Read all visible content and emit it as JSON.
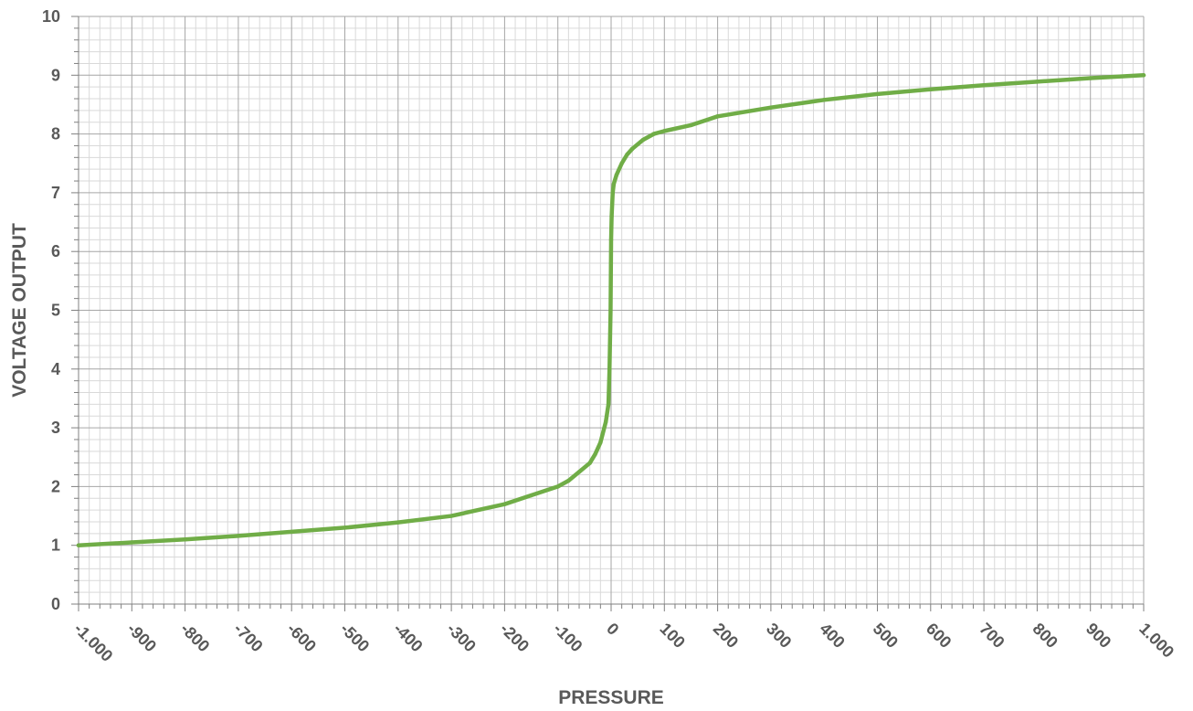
{
  "chart_data": {
    "type": "line",
    "title": "",
    "xlabel": "PRESSURE",
    "ylabel": "VOLTAGE OUTPUT",
    "xlim": [
      -1000,
      1000
    ],
    "ylim": [
      0,
      10
    ],
    "x_tick_values": [
      -1000,
      -900,
      -800,
      -700,
      -600,
      -500,
      -400,
      -300,
      -200,
      -100,
      0,
      100,
      200,
      300,
      400,
      500,
      600,
      700,
      800,
      900,
      1000
    ],
    "x_tick_labels": [
      "-1.000",
      "-900",
      "-800",
      "-700",
      "-600",
      "-500",
      "-400",
      "-300",
      "-200",
      "-100",
      "0",
      "100",
      "200",
      "300",
      "400",
      "500",
      "600",
      "700",
      "800",
      "900",
      "1.000"
    ],
    "y_tick_values": [
      0,
      1,
      2,
      3,
      4,
      5,
      6,
      7,
      8,
      9,
      10
    ],
    "y_tick_labels": [
      "0",
      "1",
      "2",
      "3",
      "4",
      "5",
      "6",
      "7",
      "8",
      "9",
      "10"
    ],
    "grid": true,
    "legend": "none",
    "series": [
      {
        "color": "#70AD47",
        "x": [
          -1000,
          -900,
          -800,
          -700,
          -600,
          -500,
          -400,
          -300,
          -200,
          -150,
          -100,
          -80,
          -60,
          -40,
          -30,
          -20,
          -10,
          -5,
          -3,
          -1,
          0,
          1,
          3,
          5,
          10,
          20,
          30,
          40,
          60,
          80,
          100,
          150,
          200,
          300,
          400,
          500,
          600,
          700,
          800,
          900,
          1000
        ],
        "y": [
          1.0,
          1.05,
          1.1,
          1.16,
          1.23,
          1.3,
          1.39,
          1.5,
          1.7,
          1.85,
          2.0,
          2.1,
          2.25,
          2.4,
          2.55,
          2.75,
          3.1,
          3.4,
          4.0,
          5.0,
          6.2,
          6.6,
          7.0,
          7.15,
          7.3,
          7.5,
          7.65,
          7.75,
          7.9,
          8.0,
          8.05,
          8.15,
          8.3,
          8.45,
          8.58,
          8.68,
          8.76,
          8.83,
          8.89,
          8.95,
          9.0
        ]
      }
    ]
  }
}
